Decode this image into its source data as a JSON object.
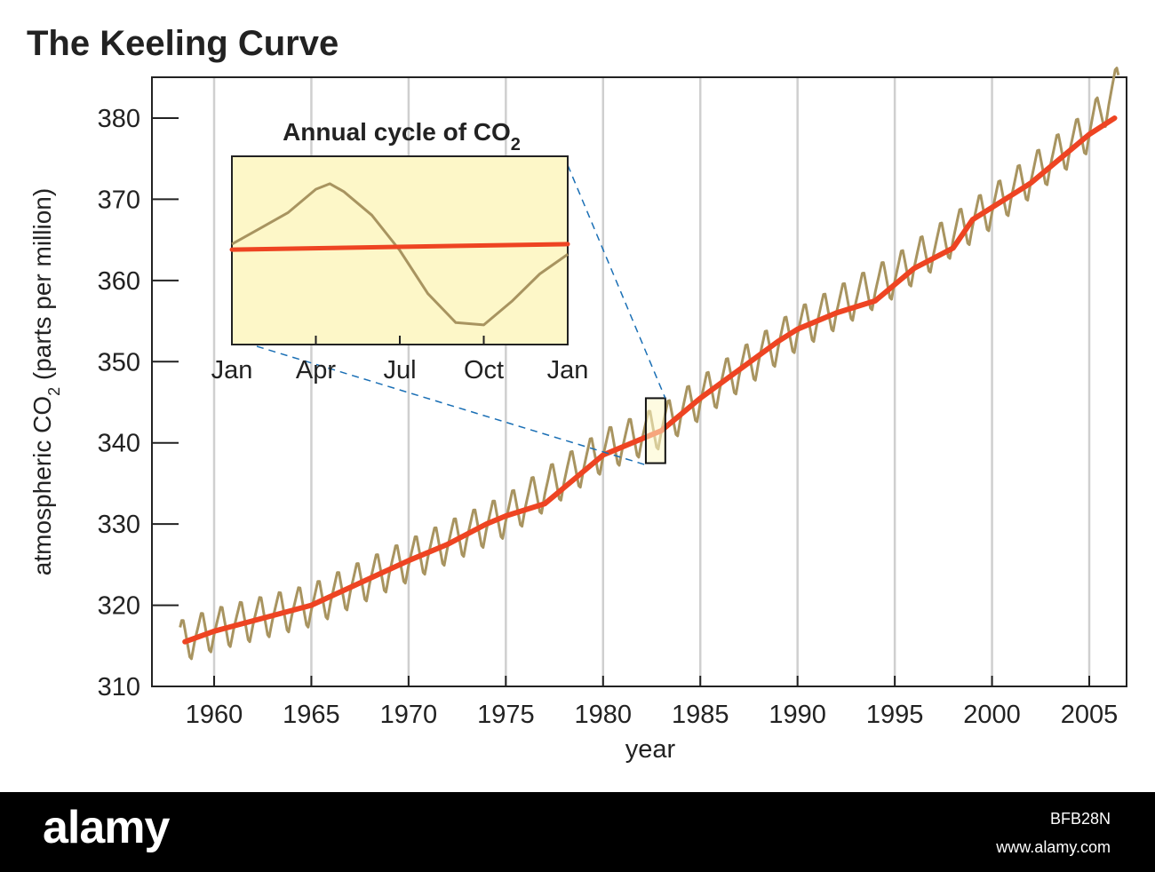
{
  "chart_data": [
    {
      "type": "line",
      "title": "The Keeling Curve",
      "xlabel": "year",
      "ylabel": "atmospheric CO2 (parts per million)",
      "xlim": [
        1957.5,
        2007.5
      ],
      "ylim": [
        310,
        385
      ],
      "x_ticks": [
        "1960",
        "1965",
        "1970",
        "1975",
        "1980",
        "1985",
        "1990",
        "1995",
        "2000",
        "2005"
      ],
      "y_ticks": [
        "310",
        "320",
        "330",
        "340",
        "350",
        "360",
        "370",
        "380"
      ],
      "grid": "vertical lines at each 5-year tick",
      "series": [
        {
          "description": "monthly CO2 with seasonal cycle",
          "color": "#a89460",
          "seasonal_amplitude_ppm": 3,
          "x": [
            1958.25,
            1960,
            1965,
            1970,
            1975,
            1980,
            1983,
            1985,
            1990,
            1995,
            2000,
            2005,
            2006.5
          ],
          "y": [
            315.5,
            317,
            320,
            325.5,
            331,
            339,
            342,
            345.5,
            354,
            360.5,
            369,
            378.5,
            384
          ]
        },
        {
          "description": "annual trend line",
          "color": "#ee4422",
          "x": [
            1958.5,
            1960,
            1965,
            1970,
            1972,
            1974,
            1975,
            1977,
            1980,
            1983,
            1985,
            1989,
            1990,
            1992,
            1994,
            1996,
            1998,
            1999,
            2000,
            2002,
            2005,
            2006.3
          ],
          "y": [
            315.5,
            316.8,
            320,
            325.5,
            327.5,
            330,
            331,
            332.5,
            338.5,
            341.5,
            345.5,
            352.5,
            354,
            356,
            357.5,
            361.5,
            364,
            367.5,
            369,
            372,
            378,
            380
          ]
        }
      ],
      "highlight_box": {
        "x": [
          1982.2,
          1983.2
        ],
        "y": [
          337.5,
          345.5
        ]
      }
    },
    {
      "type": "line",
      "title": "Annual cycle of CO2",
      "x_ticks": [
        "Jan",
        "Apr",
        "Jul",
        "Oct",
        "Jan"
      ],
      "series": [
        {
          "description": "seasonal cycle",
          "color": "#a89460",
          "x": [
            0,
            1,
            2,
            3,
            3.5,
            4,
            5,
            6,
            7,
            8,
            9,
            10,
            11,
            12
          ],
          "y": [
            364.8,
            366.8,
            368.8,
            371.8,
            372.5,
            371.5,
            368.5,
            364,
            358.5,
            354.8,
            354.5,
            357.5,
            361,
            363.5
          ]
        },
        {
          "description": "trend",
          "color": "#ee4422",
          "x": [
            0,
            12
          ],
          "y": [
            364.1,
            364.8
          ]
        }
      ],
      "ylim": [
        352,
        376
      ],
      "background": "#fdf7c8"
    }
  ],
  "watermark": {
    "logo": "alamy",
    "id": "BFB28N",
    "url": "www.alamy.com"
  }
}
